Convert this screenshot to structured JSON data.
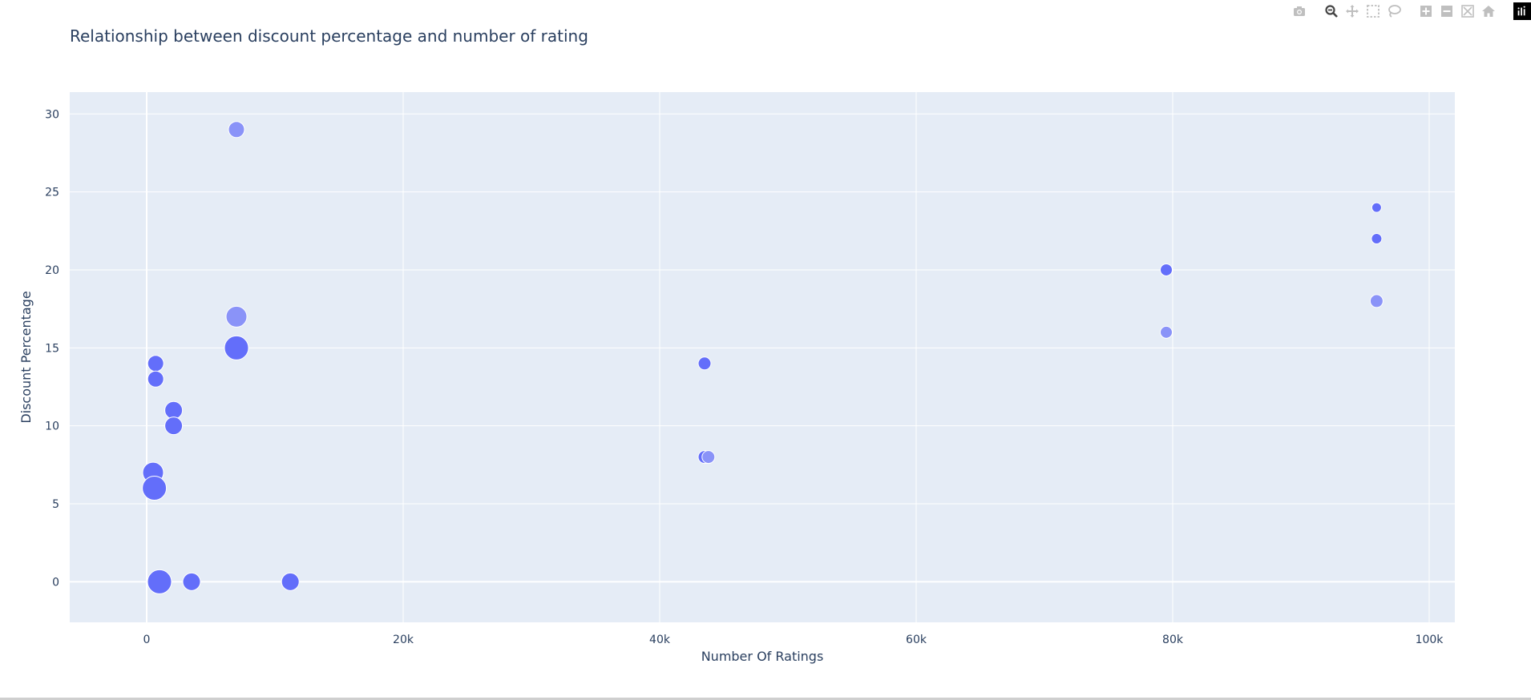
{
  "toolbar": {
    "buttons": [
      {
        "name": "camera-icon",
        "label": "Download plot as a png"
      },
      {
        "name": "zoom-icon",
        "label": "Zoom"
      },
      {
        "name": "pan-icon",
        "label": "Pan"
      },
      {
        "name": "box-select-icon",
        "label": "Box Select"
      },
      {
        "name": "lasso-select-icon",
        "label": "Lasso Select"
      },
      {
        "name": "zoom-in-icon",
        "label": "Zoom in"
      },
      {
        "name": "zoom-out-icon",
        "label": "Zoom out"
      },
      {
        "name": "autoscale-icon",
        "label": "Autoscale"
      },
      {
        "name": "reset-axes-icon",
        "label": "Reset axes"
      },
      {
        "name": "plotly-logo-icon",
        "label": "Produced with Plotly"
      }
    ]
  },
  "colors": {
    "plot_bg": "#E5ECF6",
    "grid": "#FFFFFF",
    "marker": "#636EFA",
    "marker_light": "#8A93F8",
    "text": "#2A3F5F"
  },
  "chart_data": {
    "type": "scatter",
    "title": "Relationship between discount percentage and number of rating",
    "xlabel": "Number Of Ratings",
    "ylabel": "Discount Percentage",
    "xlim": [
      -6000,
      102000
    ],
    "ylim": [
      -2.6,
      31.4
    ],
    "xticks": [
      {
        "value": 0,
        "label": "0"
      },
      {
        "value": 20000,
        "label": "20k"
      },
      {
        "value": 40000,
        "label": "40k"
      },
      {
        "value": 60000,
        "label": "60k"
      },
      {
        "value": 80000,
        "label": "80k"
      },
      {
        "value": 100000,
        "label": "100k"
      }
    ],
    "yticks": [
      {
        "value": 0,
        "label": "0"
      },
      {
        "value": 5,
        "label": "5"
      },
      {
        "value": 10,
        "label": "10"
      },
      {
        "value": 15,
        "label": "15"
      },
      {
        "value": 20,
        "label": "20"
      },
      {
        "value": 25,
        "label": "25"
      },
      {
        "value": 30,
        "label": "30"
      }
    ],
    "points": [
      {
        "x": 7000,
        "y": 29,
        "size": 20,
        "light": true
      },
      {
        "x": 7000,
        "y": 17,
        "size": 26,
        "light": true
      },
      {
        "x": 7000,
        "y": 15,
        "size": 30,
        "light": false
      },
      {
        "x": 700,
        "y": 14,
        "size": 20,
        "light": false
      },
      {
        "x": 700,
        "y": 13,
        "size": 20,
        "light": false
      },
      {
        "x": 2100,
        "y": 11,
        "size": 22,
        "light": false
      },
      {
        "x": 2100,
        "y": 10,
        "size": 22,
        "light": false
      },
      {
        "x": 500,
        "y": 7,
        "size": 26,
        "light": false
      },
      {
        "x": 600,
        "y": 6,
        "size": 30,
        "light": false
      },
      {
        "x": 1000,
        "y": 0,
        "size": 30,
        "light": false
      },
      {
        "x": 3500,
        "y": 0,
        "size": 22,
        "light": false
      },
      {
        "x": 11200,
        "y": 0,
        "size": 22,
        "light": false
      },
      {
        "x": 43500,
        "y": 14,
        "size": 16,
        "light": false
      },
      {
        "x": 43500,
        "y": 8,
        "size": 16,
        "light": false
      },
      {
        "x": 43800,
        "y": 8,
        "size": 16,
        "light": true
      },
      {
        "x": 79500,
        "y": 20,
        "size": 15,
        "light": false
      },
      {
        "x": 79500,
        "y": 16,
        "size": 15,
        "light": true
      },
      {
        "x": 95900,
        "y": 24,
        "size": 12,
        "light": false
      },
      {
        "x": 95900,
        "y": 22,
        "size": 13,
        "light": false
      },
      {
        "x": 95900,
        "y": 18,
        "size": 16,
        "light": true
      }
    ]
  }
}
